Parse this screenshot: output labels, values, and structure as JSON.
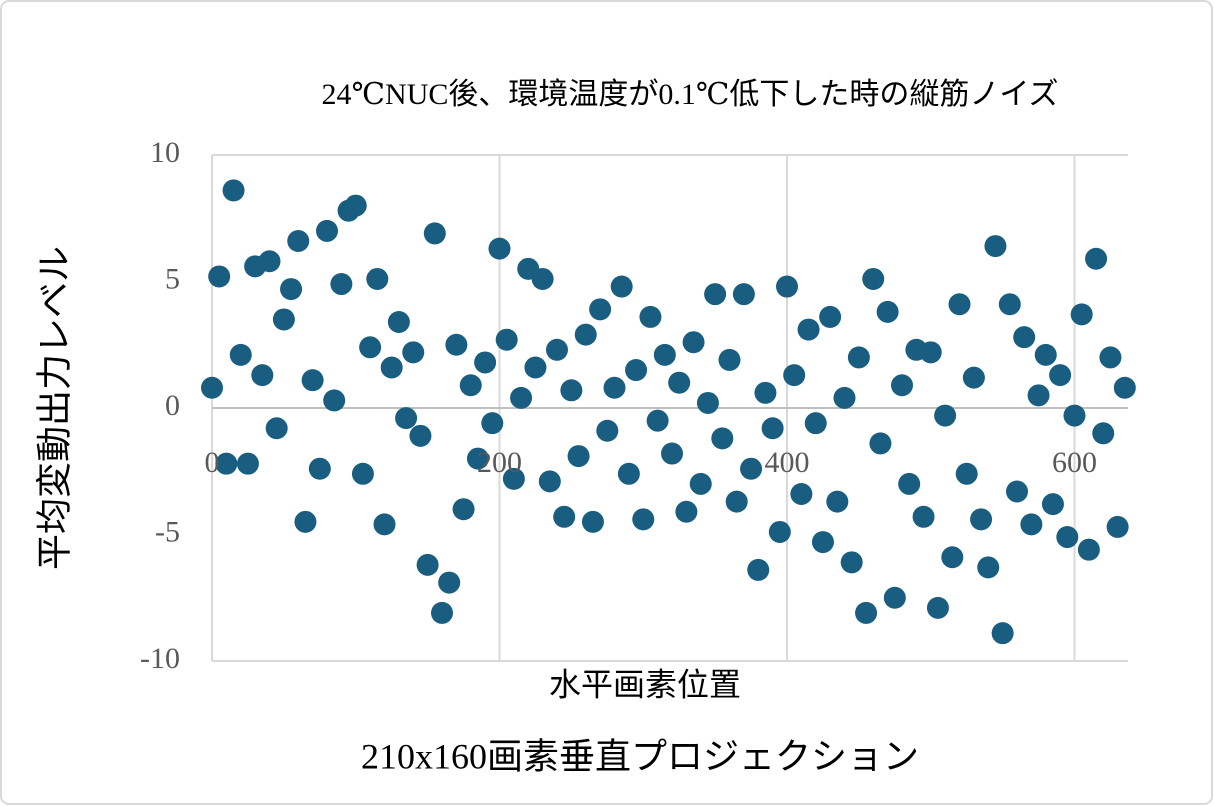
{
  "chart_data": {
    "type": "scatter",
    "title": "24℃NUC後、環境温度が0.1℃低下した時の縦筋ノイズ",
    "caption": "210x160画素垂直プロジェクション",
    "x_label": "水平画素位置",
    "y_label": "平均変動出力レベル",
    "color": "#195e80",
    "xlim": [
      0,
      640
    ],
    "xticks": [
      0,
      200,
      400,
      600
    ],
    "ylim": [
      -10,
      10
    ],
    "yticks": [
      10,
      5,
      0,
      -5,
      -10
    ],
    "grid": true,
    "x": [
      0,
      5,
      10,
      15,
      20,
      25,
      30,
      35,
      40,
      45,
      50,
      55,
      60,
      65,
      70,
      75,
      80,
      85,
      90,
      95,
      100,
      105,
      110,
      115,
      120,
      125,
      130,
      135,
      140,
      145,
      150,
      155,
      160,
      165,
      170,
      175,
      180,
      185,
      190,
      195,
      200,
      205,
      210,
      215,
      220,
      225,
      230,
      235,
      240,
      245,
      250,
      255,
      260,
      265,
      270,
      275,
      280,
      285,
      290,
      295,
      300,
      305,
      310,
      315,
      320,
      325,
      330,
      335,
      340,
      345,
      350,
      355,
      360,
      365,
      370,
      375,
      380,
      385,
      390,
      395,
      400,
      405,
      410,
      415,
      420,
      425,
      430,
      435,
      440,
      445,
      450,
      455,
      460,
      465,
      470,
      475,
      480,
      485,
      490,
      495,
      500,
      505,
      510,
      515,
      520,
      525,
      530,
      535,
      540,
      545,
      550,
      555,
      560,
      565,
      570,
      575,
      580,
      585,
      590,
      595,
      600,
      605,
      610,
      615,
      620,
      625,
      630,
      635
    ],
    "values": [
      0.8,
      5.2,
      -2.2,
      8.6,
      2.1,
      -2.2,
      5.6,
      1.3,
      5.8,
      -0.8,
      3.5,
      4.7,
      6.6,
      -4.5,
      1.1,
      -2.4,
      7.0,
      0.3,
      4.9,
      7.8,
      8.0,
      -2.6,
      2.4,
      5.1,
      -4.6,
      1.6,
      3.4,
      -0.4,
      2.2,
      -1.1,
      -6.2,
      6.9,
      -8.1,
      -6.9,
      2.5,
      -4.0,
      0.9,
      -2.0,
      1.8,
      -0.6,
      6.3,
      2.7,
      -2.8,
      0.4,
      5.5,
      1.6,
      5.1,
      -2.9,
      2.3,
      -4.3,
      0.7,
      -1.9,
      2.9,
      -4.5,
      3.9,
      -0.9,
      0.8,
      4.8,
      -2.6,
      1.5,
      -4.4,
      3.6,
      -0.5,
      2.1,
      -1.8,
      1.0,
      -4.1,
      2.6,
      -3.0,
      0.2,
      4.5,
      -1.2,
      1.9,
      -3.7,
      4.5,
      -2.4,
      -6.4,
      0.6,
      -0.8,
      -4.9,
      4.8,
      1.3,
      -3.4,
      3.1,
      -0.6,
      -5.3,
      3.6,
      -3.7,
      0.4,
      -6.1,
      2.0,
      -8.1,
      5.1,
      -1.4,
      3.8,
      -7.5,
      0.9,
      -3.0,
      2.3,
      -4.3,
      2.2,
      -7.9,
      -0.3,
      -5.9,
      4.1,
      -2.6,
      1.2,
      -4.4,
      -6.3,
      6.4,
      -8.9,
      4.1,
      -3.3,
      2.8,
      -4.6,
      0.5,
      2.1,
      -3.8,
      1.3,
      -5.1,
      -0.3,
      3.7,
      -5.6,
      5.9,
      -1.0,
      2.0,
      -4.7,
      0.8
    ]
  }
}
